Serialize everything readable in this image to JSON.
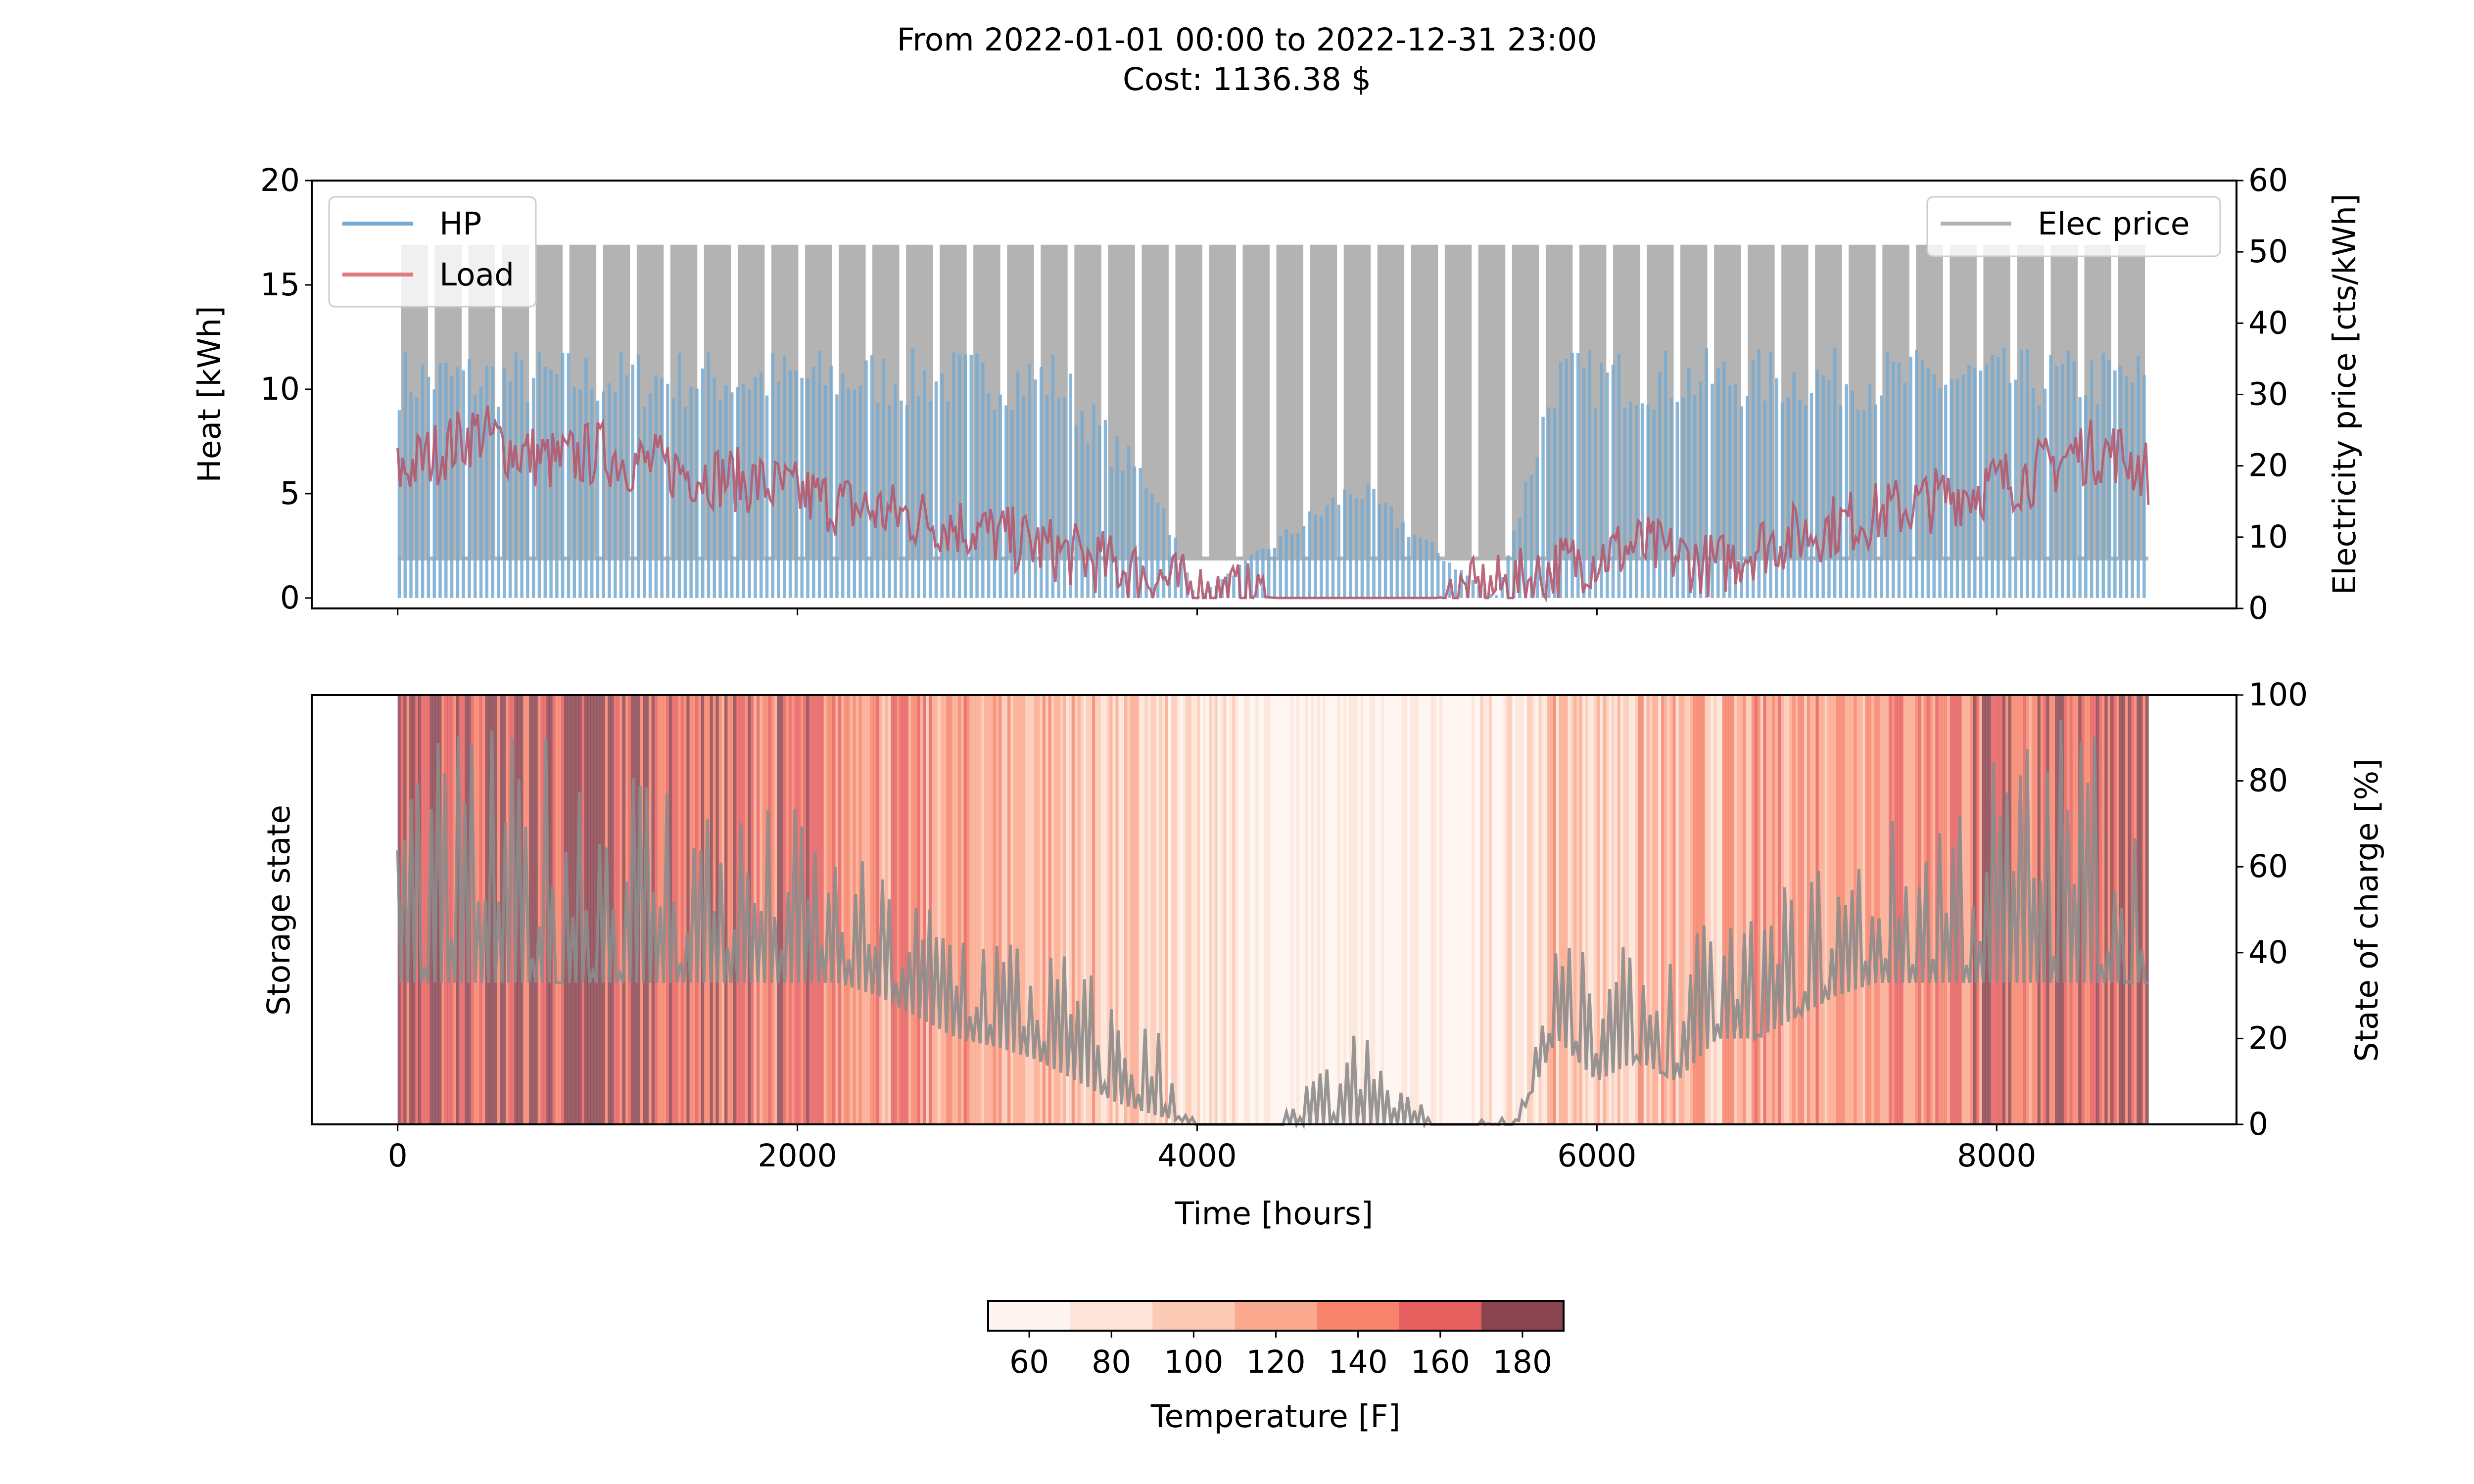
{
  "figure": {
    "title_line1": "From 2022-01-01 00:00 to 2022-12-31 23:00",
    "title_line2": "Cost: 1136.38 $"
  },
  "chart_data": [
    {
      "type": "line",
      "panel": "top",
      "xlabel": "",
      "ylabel": "Heat [kWh]",
      "y2label": "Electricity price [cts/kWh]",
      "xlim": [
        -430,
        9200
      ],
      "ylim": [
        -0.5,
        20
      ],
      "y2lim": [
        0,
        60
      ],
      "xticks": [
        0,
        2000,
        4000,
        6000,
        8000
      ],
      "yticks": [
        0,
        5,
        10,
        15,
        20
      ],
      "y2ticks": [
        0,
        10,
        20,
        30,
        40,
        50,
        60
      ],
      "legend_left": [
        {
          "name": "HP",
          "color": "#76a9d1"
        },
        {
          "name": "Load",
          "color": "#e07a80"
        }
      ],
      "legend_right": [
        {
          "name": "Elec price",
          "color": "#b3b3b3"
        }
      ],
      "series": [
        {
          "name": "Elec price",
          "axis": "right",
          "style": "daily on-peak band",
          "color": "#b3b3b3",
          "low_value": 7,
          "high_value": 51,
          "block_count": 52,
          "x_range": [
            0,
            8759
          ]
        },
        {
          "name": "HP",
          "axis": "left",
          "color": "#76a9d1",
          "max_value": 12,
          "x": [
            0,
            500,
            1000,
            1500,
            2000,
            2500,
            3000,
            3300,
            3600,
            3800,
            4000,
            4800,
            5500,
            5800,
            6200,
            6600,
            7000,
            7500,
            8000,
            8500,
            8759
          ],
          "values": [
            12,
            12,
            12,
            12,
            12,
            12,
            12,
            12,
            8,
            6,
            0,
            6,
            0,
            12,
            12,
            12,
            12,
            12,
            12,
            12,
            12
          ]
        },
        {
          "name": "Load",
          "axis": "left",
          "color": "#b5596e",
          "x": [
            0,
            200,
            400,
            600,
            800,
            1000,
            1200,
            1500,
            1800,
            2000,
            2200,
            2500,
            2800,
            3000,
            3200,
            3400,
            3600,
            3800,
            4000,
            4400,
            4800,
            5200,
            5500,
            5700,
            5800,
            6000,
            6200,
            6400,
            6600,
            6800,
            7000,
            7200,
            7400,
            7600,
            7800,
            8000,
            8200,
            8400,
            8600,
            8759
          ],
          "values": [
            6,
            7,
            8,
            7,
            6.5,
            7,
            6.5,
            6,
            5.5,
            5,
            4.5,
            4,
            3.5,
            3,
            2.5,
            2,
            1.5,
            1,
            0.3,
            0,
            0,
            0,
            0.5,
            1,
            1.5,
            2,
            2.5,
            2,
            1.5,
            2.5,
            3,
            3.5,
            4,
            4.5,
            5,
            5.5,
            6,
            7,
            7,
            6
          ]
        }
      ]
    },
    {
      "type": "line",
      "panel": "bottom",
      "xlabel": "Time [hours]",
      "ylabel": "Storage state",
      "y2label": "State of charge [%]",
      "xlim": [
        -430,
        9200
      ],
      "y2lim": [
        0,
        100
      ],
      "xticks": [
        0,
        2000,
        4000,
        6000,
        8000
      ],
      "y2ticks": [
        0,
        20,
        40,
        60,
        80,
        100
      ],
      "background": "vertical temperature bands coloured by colourbar",
      "series": [
        {
          "name": "State of charge",
          "color": "#8c8c8c",
          "baseline": 33,
          "x": [
            0,
            200,
            400,
            600,
            800,
            1000,
            1200,
            1400,
            1600,
            1800,
            2000,
            2200,
            2400,
            2600,
            2800,
            3000,
            3200,
            3400,
            3600,
            3800,
            4000,
            4400,
            4800,
            5200,
            5600,
            5800,
            6000,
            6200,
            6400,
            6600,
            6800,
            7000,
            7200,
            7400,
            7600,
            7800,
            8000,
            8200,
            8400,
            8600,
            8759
          ],
          "peak_values": [
            95,
            90,
            95,
            90,
            95,
            95,
            90,
            85,
            80,
            75,
            75,
            65,
            60,
            55,
            55,
            50,
            45,
            40,
            30,
            25,
            0,
            0,
            25,
            0,
            2,
            50,
            35,
            45,
            40,
            50,
            50,
            60,
            65,
            70,
            75,
            85,
            90,
            95,
            100,
            100,
            55
          ],
          "base_values": [
            33,
            33,
            33,
            33,
            33,
            33,
            33,
            33,
            33,
            33,
            33,
            33,
            30,
            25,
            20,
            18,
            15,
            10,
            5,
            2,
            0,
            0,
            0,
            0,
            0,
            20,
            10,
            15,
            10,
            20,
            20,
            25,
            30,
            33,
            33,
            33,
            33,
            33,
            33,
            33,
            33
          ]
        }
      ]
    },
    {
      "type": "heatmap",
      "panel": "colorbar",
      "label": "Temperature [F]",
      "ticks": [
        60,
        80,
        100,
        120,
        140,
        160,
        180
      ],
      "range": [
        50,
        190
      ],
      "bins": [
        {
          "from": 50,
          "to": 70,
          "color": "#fff5f0"
        },
        {
          "from": 70,
          "to": 90,
          "color": "#fde4d8"
        },
        {
          "from": 90,
          "to": 110,
          "color": "#fcc9b4"
        },
        {
          "from": 110,
          "to": 130,
          "color": "#fba98e"
        },
        {
          "from": 130,
          "to": 150,
          "color": "#f6836a"
        },
        {
          "from": 150,
          "to": 170,
          "color": "#e65f5f"
        },
        {
          "from": 170,
          "to": 190,
          "color": "#8b4550"
        }
      ],
      "temperature_profile": {
        "x": [
          0,
          500,
          1000,
          1500,
          2000,
          2500,
          3000,
          3500,
          4000,
          4500,
          5000,
          5500,
          5800,
          6000,
          6500,
          7000,
          7500,
          8000,
          8500,
          8759
        ],
        "values": [
          170,
          165,
          170,
          155,
          145,
          135,
          120,
          105,
          75,
          60,
          60,
          65,
          110,
          100,
          110,
          130,
          140,
          150,
          165,
          160
        ]
      }
    }
  ]
}
